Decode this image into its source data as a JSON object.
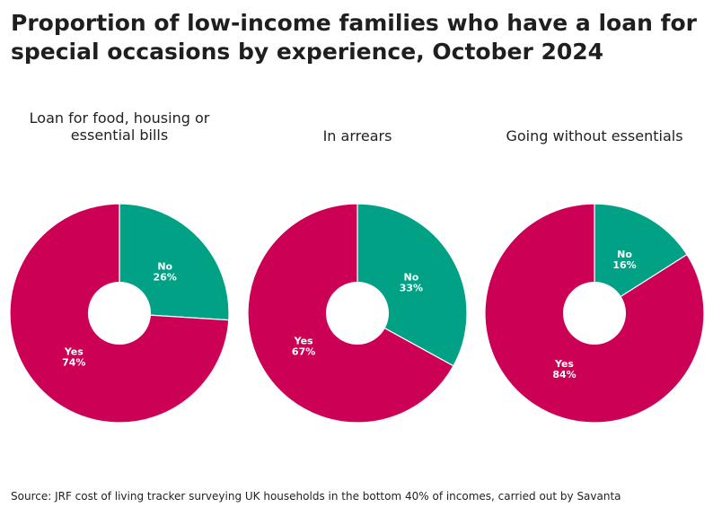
{
  "title": "Proportion of low-income families who have a loan for special occasions by experience, October 2024",
  "source": "Source: JRF cost of living tracker surveying UK households in the bottom 40% of incomes, carried out by Savanta",
  "colors": {
    "yes": "#cc0055",
    "no": "#00a184",
    "hole": "#ffffff",
    "edge": "#ffffff"
  },
  "chart_data": [
    {
      "type": "pie",
      "title": "Loan for food, housing or essential bills",
      "slices": [
        {
          "label": "No",
          "value": 26,
          "value_label": "26%"
        },
        {
          "label": "Yes",
          "value": 74,
          "value_label": "74%"
        }
      ]
    },
    {
      "type": "pie",
      "title": "In arrears",
      "slices": [
        {
          "label": "No",
          "value": 33,
          "value_label": "33%"
        },
        {
          "label": "Yes",
          "value": 67,
          "value_label": "67%"
        }
      ]
    },
    {
      "type": "pie",
      "title": "Going without essentials",
      "slices": [
        {
          "label": "No",
          "value": 16,
          "value_label": "16%"
        },
        {
          "label": "Yes",
          "value": 84,
          "value_label": "84%"
        }
      ]
    }
  ]
}
